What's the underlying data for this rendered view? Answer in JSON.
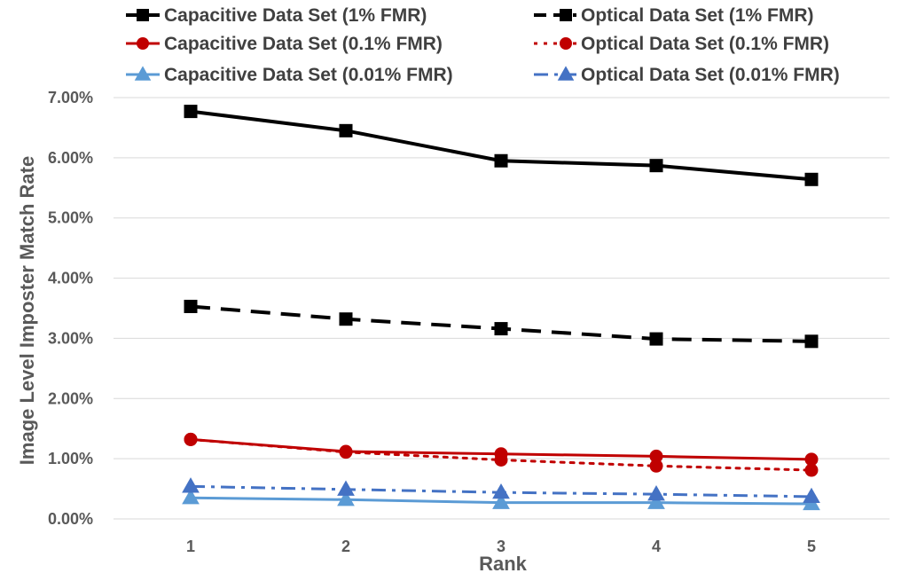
{
  "chart_data": {
    "type": "line",
    "title": "",
    "xlabel": "Rank",
    "ylabel": "Image Level Imposter Match Rate",
    "categories": [
      "1",
      "2",
      "3",
      "4",
      "5"
    ],
    "ylim": [
      0,
      0.07
    ],
    "y_ticks": [
      0,
      0.01,
      0.02,
      0.03,
      0.04,
      0.05,
      0.06,
      0.07
    ],
    "y_tick_labels": [
      "0.00%",
      "1.00%",
      "2.00%",
      "3.00%",
      "4.00%",
      "5.00%",
      "6.00%",
      "7.00%"
    ],
    "grid": true,
    "legend_position": "top",
    "series": [
      {
        "name": "Capacitive Data Set (1% FMR)",
        "values": [
          0.0677,
          0.0645,
          0.0595,
          0.0587,
          0.0564
        ],
        "color": "#000000",
        "line_style": "solid",
        "marker": "square"
      },
      {
        "name": "Optical Data Set (1% FMR)",
        "values": [
          0.0353,
          0.0332,
          0.0316,
          0.0299,
          0.0295
        ],
        "color": "#000000",
        "line_style": "dashed",
        "marker": "square"
      },
      {
        "name": "Capacitive Data Set (0.1% FMR)",
        "values": [
          0.0132,
          0.0112,
          0.0108,
          0.0104,
          0.0099
        ],
        "color": "#c00000",
        "line_style": "solid",
        "marker": "circle"
      },
      {
        "name": "Optical Data Set (0.1% FMR)",
        "values": [
          0.0132,
          0.0111,
          0.0098,
          0.0088,
          0.0081
        ],
        "color": "#c00000",
        "line_style": "dotted",
        "marker": "circle"
      },
      {
        "name": "Capacitive Data Set (0.01% FMR)",
        "values": [
          0.0035,
          0.0032,
          0.0027,
          0.0027,
          0.0025
        ],
        "color": "#5b9bd5",
        "line_style": "solid",
        "marker": "triangle"
      },
      {
        "name": "Optical Data Set (0.01% FMR)",
        "values": [
          0.0054,
          0.0049,
          0.0044,
          0.0041,
          0.0037
        ],
        "color": "#4472c4",
        "line_style": "dashdot",
        "marker": "triangle"
      }
    ]
  }
}
